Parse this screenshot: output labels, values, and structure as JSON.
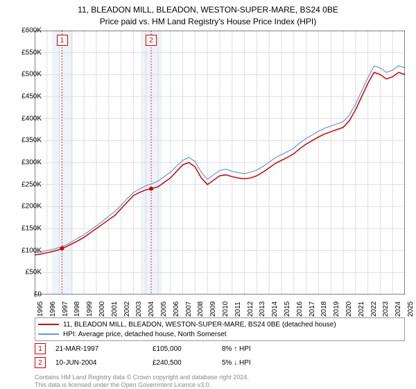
{
  "title_line1": "11, BLEADON MILL, BLEADON, WESTON-SUPER-MARE, BS24 0BE",
  "title_line2": "Price paid vs. HM Land Registry's House Price Index (HPI)",
  "chart": {
    "type": "line",
    "background_color": "#ffffff",
    "grid_color": "#dddddd",
    "shaded_band_color": "#eef3fa",
    "y": {
      "min": 0,
      "max": 600000,
      "step": 50000,
      "labels": [
        "£0",
        "£50K",
        "£100K",
        "£150K",
        "£200K",
        "£250K",
        "£300K",
        "£350K",
        "£400K",
        "£450K",
        "£500K",
        "£550K",
        "£600K"
      ]
    },
    "x": {
      "min": 1995,
      "max": 2025,
      "step": 1,
      "labels": [
        "1995",
        "1996",
        "1997",
        "1998",
        "1999",
        "2000",
        "2001",
        "2002",
        "2003",
        "2004",
        "2005",
        "2006",
        "2007",
        "2008",
        "2009",
        "2010",
        "2011",
        "2012",
        "2013",
        "2014",
        "2015",
        "2016",
        "2017",
        "2018",
        "2019",
        "2020",
        "2021",
        "2022",
        "2023",
        "2024",
        "2025"
      ]
    },
    "series": [
      {
        "name": "11, BLEADON MILL, BLEADON, WESTON-SUPER-MARE, BS24 0BE (detached house)",
        "color": "#cc0000",
        "width": 1.5,
        "points": [
          [
            1995,
            90000
          ],
          [
            1995.5,
            92000
          ],
          [
            1996,
            95000
          ],
          [
            1996.5,
            98000
          ],
          [
            1997,
            102000
          ],
          [
            1997.22,
            105000
          ],
          [
            1997.5,
            108000
          ],
          [
            1998,
            115000
          ],
          [
            1998.5,
            122000
          ],
          [
            1999,
            130000
          ],
          [
            1999.5,
            140000
          ],
          [
            2000,
            150000
          ],
          [
            2000.5,
            160000
          ],
          [
            2001,
            170000
          ],
          [
            2001.5,
            180000
          ],
          [
            2002,
            195000
          ],
          [
            2002.5,
            210000
          ],
          [
            2003,
            225000
          ],
          [
            2003.5,
            232000
          ],
          [
            2004,
            238000
          ],
          [
            2004.44,
            240500
          ],
          [
            2005,
            245000
          ],
          [
            2005.5,
            255000
          ],
          [
            2006,
            265000
          ],
          [
            2006.5,
            280000
          ],
          [
            2007,
            295000
          ],
          [
            2007.5,
            300000
          ],
          [
            2008,
            290000
          ],
          [
            2008.5,
            265000
          ],
          [
            2009,
            250000
          ],
          [
            2009.5,
            260000
          ],
          [
            2010,
            270000
          ],
          [
            2010.5,
            272000
          ],
          [
            2011,
            268000
          ],
          [
            2011.5,
            265000
          ],
          [
            2012,
            263000
          ],
          [
            2012.5,
            265000
          ],
          [
            2013,
            270000
          ],
          [
            2013.5,
            278000
          ],
          [
            2014,
            288000
          ],
          [
            2014.5,
            298000
          ],
          [
            2015,
            305000
          ],
          [
            2015.5,
            312000
          ],
          [
            2016,
            320000
          ],
          [
            2016.5,
            332000
          ],
          [
            2017,
            342000
          ],
          [
            2017.5,
            350000
          ],
          [
            2018,
            358000
          ],
          [
            2018.5,
            365000
          ],
          [
            2019,
            370000
          ],
          [
            2019.5,
            375000
          ],
          [
            2020,
            380000
          ],
          [
            2020.5,
            395000
          ],
          [
            2021,
            420000
          ],
          [
            2021.5,
            450000
          ],
          [
            2022,
            480000
          ],
          [
            2022.5,
            505000
          ],
          [
            2023,
            500000
          ],
          [
            2023.5,
            490000
          ],
          [
            2024,
            495000
          ],
          [
            2024.5,
            505000
          ],
          [
            2025,
            500000
          ]
        ]
      },
      {
        "name": "HPI: Average price, detached house, North Somerset",
        "color": "#6699cc",
        "width": 1.2,
        "points": [
          [
            1995,
            95000
          ],
          [
            1995.5,
            97000
          ],
          [
            1996,
            100000
          ],
          [
            1996.5,
            103000
          ],
          [
            1997,
            107000
          ],
          [
            1997.5,
            112000
          ],
          [
            1998,
            120000
          ],
          [
            1998.5,
            128000
          ],
          [
            1999,
            136000
          ],
          [
            1999.5,
            146000
          ],
          [
            2000,
            156000
          ],
          [
            2000.5,
            167000
          ],
          [
            2001,
            178000
          ],
          [
            2001.5,
            189000
          ],
          [
            2002,
            203000
          ],
          [
            2002.5,
            218000
          ],
          [
            2003,
            232000
          ],
          [
            2003.5,
            240000
          ],
          [
            2004,
            247000
          ],
          [
            2004.5,
            252000
          ],
          [
            2005,
            258000
          ],
          [
            2005.5,
            268000
          ],
          [
            2006,
            278000
          ],
          [
            2006.5,
            292000
          ],
          [
            2007,
            305000
          ],
          [
            2007.5,
            312000
          ],
          [
            2008,
            302000
          ],
          [
            2008.5,
            278000
          ],
          [
            2009,
            262000
          ],
          [
            2009.5,
            272000
          ],
          [
            2010,
            282000
          ],
          [
            2010.5,
            285000
          ],
          [
            2011,
            280000
          ],
          [
            2011.5,
            277000
          ],
          [
            2012,
            275000
          ],
          [
            2012.5,
            278000
          ],
          [
            2013,
            283000
          ],
          [
            2013.5,
            291000
          ],
          [
            2014,
            301000
          ],
          [
            2014.5,
            311000
          ],
          [
            2015,
            318000
          ],
          [
            2015.5,
            325000
          ],
          [
            2016,
            333000
          ],
          [
            2016.5,
            345000
          ],
          [
            2017,
            355000
          ],
          [
            2017.5,
            363000
          ],
          [
            2018,
            371000
          ],
          [
            2018.5,
            378000
          ],
          [
            2019,
            383000
          ],
          [
            2019.5,
            388000
          ],
          [
            2020,
            393000
          ],
          [
            2020.5,
            408000
          ],
          [
            2021,
            433000
          ],
          [
            2021.5,
            463000
          ],
          [
            2022,
            493000
          ],
          [
            2022.5,
            520000
          ],
          [
            2023,
            515000
          ],
          [
            2023.5,
            505000
          ],
          [
            2024,
            510000
          ],
          [
            2024.5,
            520000
          ],
          [
            2025,
            515000
          ]
        ]
      }
    ],
    "sale_markers": [
      {
        "flag": "1",
        "year": 1997.22,
        "price": 105000,
        "band": [
          1996.4,
          1998.1
        ]
      },
      {
        "flag": "2",
        "year": 2004.44,
        "price": 240500,
        "band": [
          2003.6,
          2005.3
        ]
      }
    ],
    "marker_color": "#cc0000",
    "marker_dot_radius": 3
  },
  "legend": {
    "rows": [
      {
        "color": "#cc0000",
        "label": "11, BLEADON MILL, BLEADON, WESTON-SUPER-MARE, BS24 0BE (detached house)"
      },
      {
        "color": "#6699cc",
        "label": "HPI: Average price, detached house, North Somerset"
      }
    ]
  },
  "sales_table": [
    {
      "flag": "1",
      "date": "21-MAR-1997",
      "price": "£105,000",
      "delta": "8% ↑ HPI"
    },
    {
      "flag": "2",
      "date": "10-JUN-2004",
      "price": "£240,500",
      "delta": "5% ↓ HPI"
    }
  ],
  "footer_line1": "Contains HM Land Registry data © Crown copyright and database right 2024.",
  "footer_line2": "This data is licensed under the Open Government Licence v3.0."
}
